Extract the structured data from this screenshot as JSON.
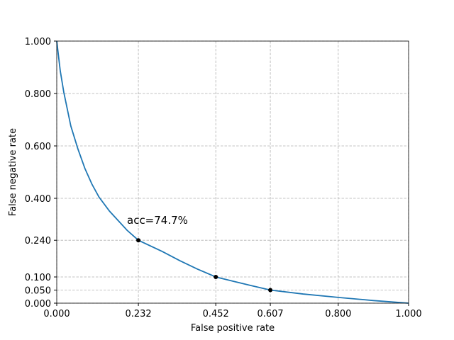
{
  "chart_data": {
    "type": "line",
    "xlabel": "False positive rate",
    "ylabel": "False negative rate",
    "annotation": "acc=74.7%",
    "x": [
      0,
      0.01,
      0.02,
      0.04,
      0.06,
      0.08,
      0.1,
      0.12,
      0.15,
      0.2,
      0.232,
      0.3,
      0.35,
      0.4,
      0.452,
      0.5,
      0.55,
      0.607,
      0.7,
      0.8,
      0.9,
      1.0
    ],
    "series": [
      {
        "color": "#1f77b4",
        "values": [
          1.0,
          0.886,
          0.805,
          0.676,
          0.589,
          0.514,
          0.454,
          0.405,
          0.351,
          0.278,
          0.24,
          0.197,
          0.162,
          0.13,
          0.1,
          0.084,
          0.068,
          0.05,
          0.035,
          0.022,
          0.01,
          0
        ]
      }
    ],
    "points": {
      "color": "#000000",
      "x": [
        0.232,
        0.452,
        0.607
      ],
      "y": [
        0.24,
        0.1,
        0.05
      ]
    },
    "xlim": [
      0,
      1
    ],
    "ylim": [
      0,
      1
    ],
    "xticks": [
      {
        "value": 0,
        "label": "0.000"
      },
      {
        "value": 0.232,
        "label": "0.232"
      },
      {
        "value": 0.452,
        "label": "0.452"
      },
      {
        "value": 0.607,
        "label": "0.607"
      },
      {
        "value": 0.8,
        "label": "0.800"
      },
      {
        "value": 1,
        "label": "1.000"
      }
    ],
    "yticks": [
      {
        "value": 0,
        "label": "0.000"
      },
      {
        "value": 0.05,
        "label": "0.050"
      },
      {
        "value": 0.1,
        "label": "0.100"
      },
      {
        "value": 0.24,
        "label": "0.240"
      },
      {
        "value": 0.4,
        "label": "0.400"
      },
      {
        "value": 0.6,
        "label": "0.600"
      },
      {
        "value": 0.8,
        "label": "0.800"
      },
      {
        "value": 1,
        "label": "1.000"
      }
    ],
    "grid": true
  }
}
